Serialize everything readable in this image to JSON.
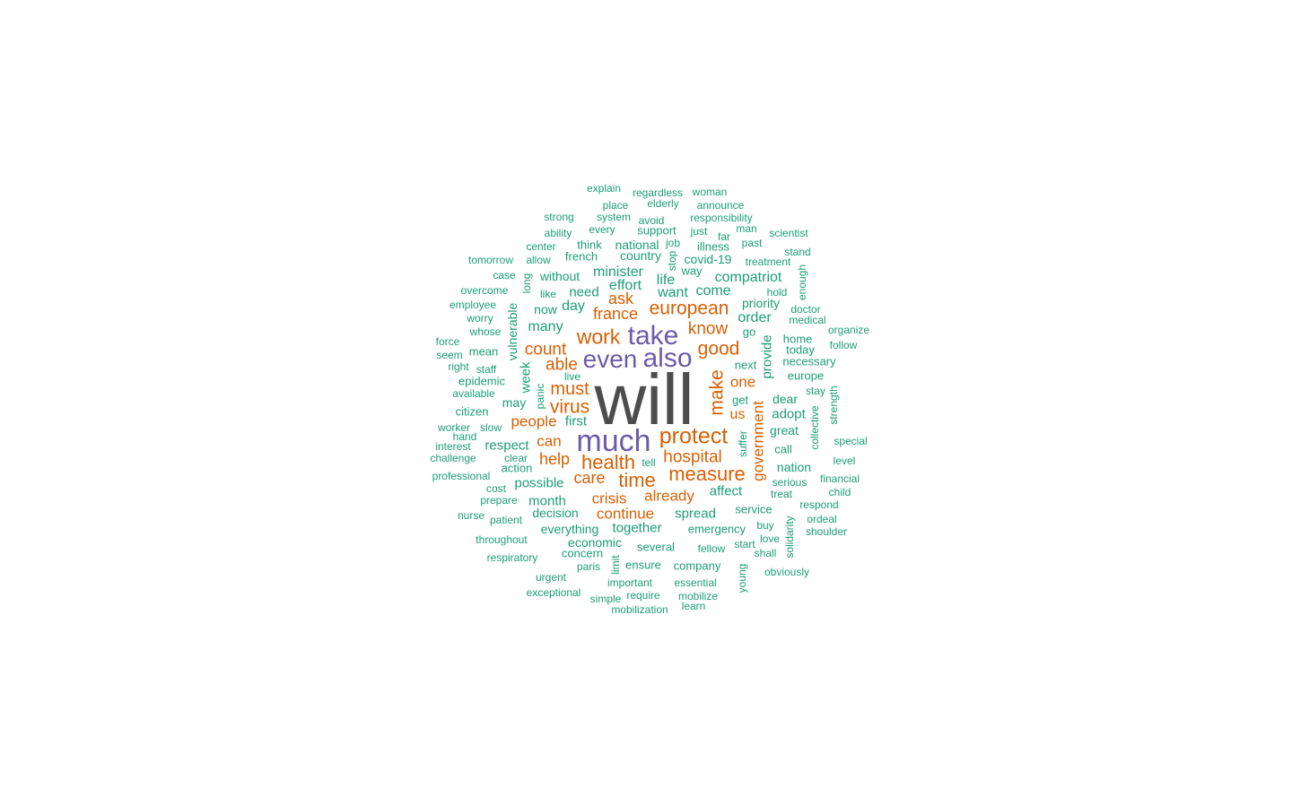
{
  "colors": {
    "top": "#4d4d4d",
    "high": "#6b5ba8",
    "mid": "#d95f02",
    "low": "#1b9e77"
  },
  "words": [
    {
      "text": "will",
      "tier": "top",
      "freq": 100
    },
    {
      "text": "much",
      "tier": "high",
      "freq": 40
    },
    {
      "text": "take",
      "tier": "high",
      "freq": 36
    },
    {
      "text": "also",
      "tier": "high",
      "freq": 36
    },
    {
      "text": "even",
      "tier": "high",
      "freq": 34
    },
    {
      "text": "protect",
      "tier": "mid",
      "freq": 28
    },
    {
      "text": "work",
      "tier": "mid",
      "freq": 26
    },
    {
      "text": "health",
      "tier": "mid",
      "freq": 26
    },
    {
      "text": "time",
      "tier": "mid",
      "freq": 26
    },
    {
      "text": "measure",
      "tier": "mid",
      "freq": 25
    },
    {
      "text": "european",
      "tier": "mid",
      "freq": 24
    },
    {
      "text": "good",
      "tier": "mid",
      "freq": 24
    },
    {
      "text": "make",
      "tier": "mid",
      "freq": 24
    },
    {
      "text": "virus",
      "tier": "mid",
      "freq": 23
    },
    {
      "text": "must",
      "tier": "mid",
      "freq": 22
    },
    {
      "text": "hospital",
      "tier": "mid",
      "freq": 22
    },
    {
      "text": "count",
      "tier": "mid",
      "freq": 21
    },
    {
      "text": "able",
      "tier": "mid",
      "freq": 21
    },
    {
      "text": "know",
      "tier": "mid",
      "freq": 21
    },
    {
      "text": "france",
      "tier": "mid",
      "freq": 20
    },
    {
      "text": "ask",
      "tier": "mid",
      "freq": 20
    },
    {
      "text": "care",
      "tier": "mid",
      "freq": 20
    },
    {
      "text": "help",
      "tier": "mid",
      "freq": 20
    },
    {
      "text": "people",
      "tier": "mid",
      "freq": 19
    },
    {
      "text": "already",
      "tier": "mid",
      "freq": 19
    },
    {
      "text": "crisis",
      "tier": "mid",
      "freq": 19
    },
    {
      "text": "government",
      "tier": "mid",
      "freq": 19
    },
    {
      "text": "one",
      "tier": "mid",
      "freq": 19
    },
    {
      "text": "continue",
      "tier": "mid",
      "freq": 18
    },
    {
      "text": "can",
      "tier": "mid",
      "freq": 18
    },
    {
      "text": "us",
      "tier": "mid",
      "freq": 18
    },
    {
      "text": "effort",
      "tier": "low",
      "freq": 16
    },
    {
      "text": "many",
      "tier": "low",
      "freq": 16
    },
    {
      "text": "life",
      "tier": "low",
      "freq": 16
    },
    {
      "text": "want",
      "tier": "low",
      "freq": 16
    },
    {
      "text": "minister",
      "tier": "low",
      "freq": 16
    },
    {
      "text": "compatriot",
      "tier": "low",
      "freq": 16
    },
    {
      "text": "come",
      "tier": "low",
      "freq": 16
    },
    {
      "text": "order",
      "tier": "low",
      "freq": 16
    },
    {
      "text": "day",
      "tier": "low",
      "freq": 16
    },
    {
      "text": "need",
      "tier": "low",
      "freq": 15
    },
    {
      "text": "week",
      "tier": "low",
      "freq": 15
    },
    {
      "text": "provide",
      "tier": "low",
      "freq": 15
    },
    {
      "text": "adopt",
      "tier": "low",
      "freq": 15
    },
    {
      "text": "affect",
      "tier": "low",
      "freq": 15
    },
    {
      "text": "spread",
      "tier": "low",
      "freq": 15
    },
    {
      "text": "together",
      "tier": "low",
      "freq": 15
    },
    {
      "text": "month",
      "tier": "low",
      "freq": 15
    },
    {
      "text": "possible",
      "tier": "low",
      "freq": 15
    },
    {
      "text": "first",
      "tier": "low",
      "freq": 15
    },
    {
      "text": "respect",
      "tier": "low",
      "freq": 14
    },
    {
      "text": "dear",
      "tier": "low",
      "freq": 14
    },
    {
      "text": "vulnerable",
      "tier": "low",
      "freq": 14
    },
    {
      "text": "priority",
      "tier": "low",
      "freq": 14
    },
    {
      "text": "covid-19",
      "tier": "low",
      "freq": 14
    },
    {
      "text": "without",
      "tier": "low",
      "freq": 14
    },
    {
      "text": "decision",
      "tier": "low",
      "freq": 14
    },
    {
      "text": "everything",
      "tier": "low",
      "freq": 14
    },
    {
      "text": "economic",
      "tier": "low",
      "freq": 14
    },
    {
      "text": "great",
      "tier": "low",
      "freq": 14
    },
    {
      "text": "nation",
      "tier": "low",
      "freq": 14
    },
    {
      "text": "country",
      "tier": "low",
      "freq": 14
    },
    {
      "text": "national",
      "tier": "low",
      "freq": 14
    },
    {
      "text": "now",
      "tier": "low",
      "freq": 14
    },
    {
      "text": "may",
      "tier": "low",
      "freq": 14
    },
    {
      "text": "europe",
      "tier": "low",
      "freq": 13
    },
    {
      "text": "call",
      "tier": "low",
      "freq": 13
    },
    {
      "text": "service",
      "tier": "low",
      "freq": 13
    },
    {
      "text": "emergency",
      "tier": "low",
      "freq": 13
    },
    {
      "text": "several",
      "tier": "low",
      "freq": 13
    },
    {
      "text": "company",
      "tier": "low",
      "freq": 13
    },
    {
      "text": "ensure",
      "tier": "low",
      "freq": 13
    },
    {
      "text": "concern",
      "tier": "low",
      "freq": 13
    },
    {
      "text": "go",
      "tier": "low",
      "freq": 13
    },
    {
      "text": "next",
      "tier": "low",
      "freq": 13
    },
    {
      "text": "home",
      "tier": "low",
      "freq": 13
    },
    {
      "text": "today",
      "tier": "low",
      "freq": 13
    },
    {
      "text": "necessary",
      "tier": "low",
      "freq": 13
    },
    {
      "text": "get",
      "tier": "low",
      "freq": 13
    },
    {
      "text": "citizen",
      "tier": "low",
      "freq": 13
    },
    {
      "text": "epidemic",
      "tier": "low",
      "freq": 13
    },
    {
      "text": "mean",
      "tier": "low",
      "freq": 13
    },
    {
      "text": "action",
      "tier": "low",
      "freq": 13
    },
    {
      "text": "french",
      "tier": "low",
      "freq": 13
    },
    {
      "text": "think",
      "tier": "low",
      "freq": 13
    },
    {
      "text": "support",
      "tier": "low",
      "freq": 13
    },
    {
      "text": "way",
      "tier": "low",
      "freq": 13
    },
    {
      "text": "illness",
      "tier": "low",
      "freq": 12
    },
    {
      "text": "treatment",
      "tier": "low",
      "freq": 12
    },
    {
      "text": "collective",
      "tier": "low",
      "freq": 12
    },
    {
      "text": "serious",
      "tier": "low",
      "freq": 12
    },
    {
      "text": "fellow",
      "tier": "low",
      "freq": 12
    },
    {
      "text": "slow",
      "tier": "low",
      "freq": 12
    },
    {
      "text": "long",
      "tier": "low",
      "freq": 12
    },
    {
      "text": "responsibility",
      "tier": "low",
      "freq": 12
    },
    {
      "text": "every",
      "tier": "low",
      "freq": 12
    },
    {
      "text": "system",
      "tier": "low",
      "freq": 12
    },
    {
      "text": "avoid",
      "tier": "low",
      "freq": 12
    },
    {
      "text": "just",
      "tier": "low",
      "freq": 12
    },
    {
      "text": "far",
      "tier": "low",
      "freq": 12
    },
    {
      "text": "explain",
      "tier": "low",
      "freq": 12
    },
    {
      "text": "regardless",
      "tier": "low",
      "freq": 12
    },
    {
      "text": "woman",
      "tier": "low",
      "freq": 12
    },
    {
      "text": "place",
      "tier": "low",
      "freq": 12
    },
    {
      "text": "elderly",
      "tier": "low",
      "freq": 12
    },
    {
      "text": "announce",
      "tier": "low",
      "freq": 12
    },
    {
      "text": "strong",
      "tier": "low",
      "freq": 12
    },
    {
      "text": "ability",
      "tier": "low",
      "freq": 12
    },
    {
      "text": "center",
      "tier": "low",
      "freq": 12
    },
    {
      "text": "allow",
      "tier": "low",
      "freq": 12
    },
    {
      "text": "tomorrow",
      "tier": "low",
      "freq": 12
    },
    {
      "text": "case",
      "tier": "low",
      "freq": 12
    },
    {
      "text": "overcome",
      "tier": "low",
      "freq": 12
    },
    {
      "text": "employee",
      "tier": "low",
      "freq": 12
    },
    {
      "text": "worry",
      "tier": "low",
      "freq": 12
    },
    {
      "text": "whose",
      "tier": "low",
      "freq": 12
    },
    {
      "text": "force",
      "tier": "low",
      "freq": 12
    },
    {
      "text": "seem",
      "tier": "low",
      "freq": 12
    },
    {
      "text": "right",
      "tier": "low",
      "freq": 12
    },
    {
      "text": "staff",
      "tier": "low",
      "freq": 12
    },
    {
      "text": "available",
      "tier": "low",
      "freq": 12
    },
    {
      "text": "worker",
      "tier": "low",
      "freq": 12
    },
    {
      "text": "hand",
      "tier": "low",
      "freq": 12
    },
    {
      "text": "interest",
      "tier": "low",
      "freq": 12
    },
    {
      "text": "challenge",
      "tier": "low",
      "freq": 12
    },
    {
      "text": "professional",
      "tier": "low",
      "freq": 12
    },
    {
      "text": "clear",
      "tier": "low",
      "freq": 12
    },
    {
      "text": "cost",
      "tier": "low",
      "freq": 12
    },
    {
      "text": "prepare",
      "tier": "low",
      "freq": 12
    },
    {
      "text": "nurse",
      "tier": "low",
      "freq": 12
    },
    {
      "text": "patient",
      "tier": "low",
      "freq": 12
    },
    {
      "text": "throughout",
      "tier": "low",
      "freq": 12
    },
    {
      "text": "respiratory",
      "tier": "low",
      "freq": 12
    },
    {
      "text": "urgent",
      "tier": "low",
      "freq": 12
    },
    {
      "text": "exceptional",
      "tier": "low",
      "freq": 12
    },
    {
      "text": "paris",
      "tier": "low",
      "freq": 12
    },
    {
      "text": "limit",
      "tier": "low",
      "freq": 12
    },
    {
      "text": "important",
      "tier": "low",
      "freq": 12
    },
    {
      "text": "simple",
      "tier": "low",
      "freq": 12
    },
    {
      "text": "require",
      "tier": "low",
      "freq": 12
    },
    {
      "text": "mobilization",
      "tier": "low",
      "freq": 12
    },
    {
      "text": "essential",
      "tier": "low",
      "freq": 12
    },
    {
      "text": "mobilize",
      "tier": "low",
      "freq": 12
    },
    {
      "text": "learn",
      "tier": "low",
      "freq": 12
    },
    {
      "text": "young",
      "tier": "low",
      "freq": 12
    },
    {
      "text": "obviously",
      "tier": "low",
      "freq": 12
    },
    {
      "text": "shall",
      "tier": "low",
      "freq": 12
    },
    {
      "text": "love",
      "tier": "low",
      "freq": 12
    },
    {
      "text": "start",
      "tier": "low",
      "freq": 12
    },
    {
      "text": "buy",
      "tier": "low",
      "freq": 12
    },
    {
      "text": "solidarity",
      "tier": "low",
      "freq": 12
    },
    {
      "text": "shoulder",
      "tier": "low",
      "freq": 12
    },
    {
      "text": "ordeal",
      "tier": "low",
      "freq": 12
    },
    {
      "text": "respond",
      "tier": "low",
      "freq": 12
    },
    {
      "text": "child",
      "tier": "low",
      "freq": 12
    },
    {
      "text": "financial",
      "tier": "low",
      "freq": 12
    },
    {
      "text": "level",
      "tier": "low",
      "freq": 12
    },
    {
      "text": "special",
      "tier": "low",
      "freq": 12
    },
    {
      "text": "treat",
      "tier": "low",
      "freq": 12
    },
    {
      "text": "suffer",
      "tier": "low",
      "freq": 12
    },
    {
      "text": "strength",
      "tier": "low",
      "freq": 12
    },
    {
      "text": "stay",
      "tier": "low",
      "freq": 12
    },
    {
      "text": "follow",
      "tier": "low",
      "freq": 12
    },
    {
      "text": "organize",
      "tier": "low",
      "freq": 12
    },
    {
      "text": "medical",
      "tier": "low",
      "freq": 12
    },
    {
      "text": "doctor",
      "tier": "low",
      "freq": 12
    },
    {
      "text": "enough",
      "tier": "low",
      "freq": 12
    },
    {
      "text": "hold",
      "tier": "low",
      "freq": 12
    },
    {
      "text": "stand",
      "tier": "low",
      "freq": 12
    },
    {
      "text": "scientist",
      "tier": "low",
      "freq": 12
    },
    {
      "text": "past",
      "tier": "low",
      "freq": 12
    },
    {
      "text": "man",
      "tier": "low",
      "freq": 12
    },
    {
      "text": "job",
      "tier": "low",
      "freq": 12
    },
    {
      "text": "stop",
      "tier": "low",
      "freq": 12
    },
    {
      "text": "like",
      "tier": "low",
      "freq": 12
    },
    {
      "text": "panic",
      "tier": "low",
      "freq": 12
    },
    {
      "text": "live",
      "tier": "low",
      "freq": 12
    },
    {
      "text": "tell",
      "tier": "low",
      "freq": 12
    }
  ]
}
